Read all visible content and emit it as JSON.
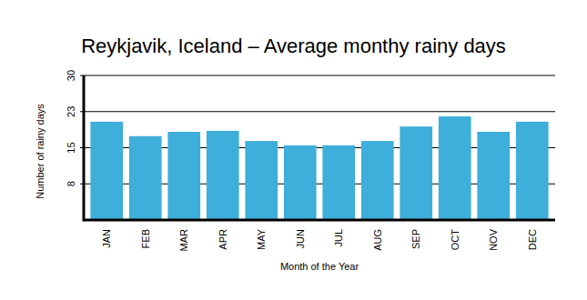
{
  "chart_data": {
    "type": "bar",
    "title": "Reykjavik, Iceland – Average monthy rainy days",
    "x_label": "Month of the Year",
    "y_label": "Number of rainy days",
    "categories": [
      "JAN",
      "FEB",
      "MAR",
      "APR",
      "MAY",
      "JUN",
      "JUL",
      "AUG",
      "SEP",
      "OCT",
      "NOV",
      "DEC"
    ],
    "values": [
      20.4,
      17.4,
      18.3,
      18.5,
      16.4,
      15.5,
      15.5,
      16.4,
      19.4,
      21.5,
      18.3,
      20.4
    ],
    "color": "#3eaedb",
    "ylim": [
      0,
      30
    ],
    "yticks": [
      {
        "value": 7.5,
        "label": "8"
      },
      15,
      {
        "value": 22.5,
        "label": "23"
      },
      30
    ],
    "grid": true
  }
}
